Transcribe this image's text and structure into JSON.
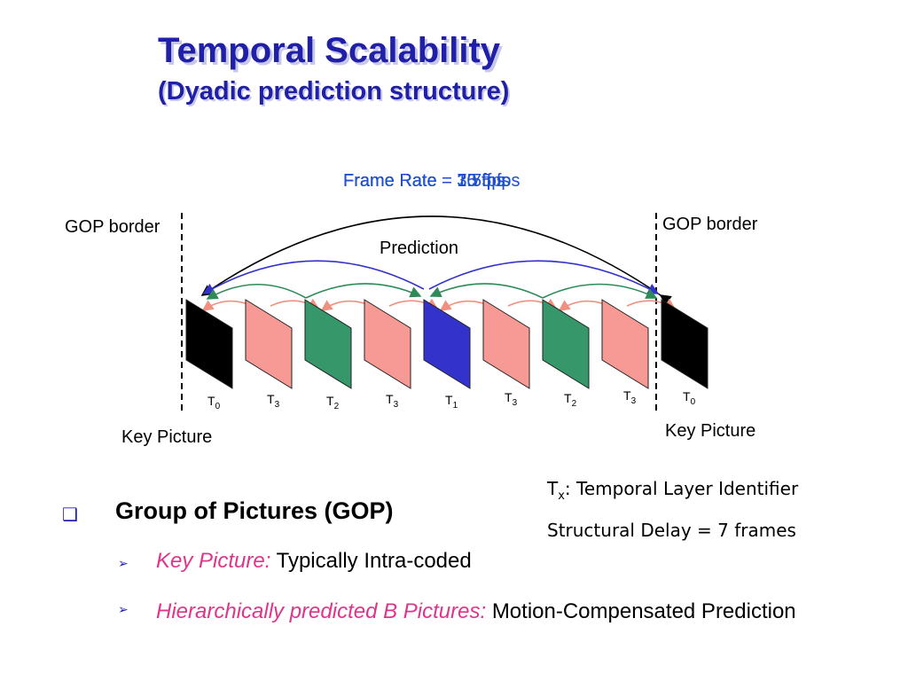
{
  "header": {
    "title": "Temporal Scalability",
    "subtitle": "(Dyadic prediction structure)"
  },
  "diagram": {
    "frame_rates": [
      "Frame Rate = 3.75 fps",
      "Frame Rate = 7.5 fps",
      "Frame Rate = 15 fps",
      "Frame Rate = 30 fps"
    ],
    "gop_border_left": "GOP border",
    "gop_border_right": "GOP border",
    "prediction": "Prediction",
    "key_picture_left": "Key Picture",
    "key_picture_right": "Key Picture",
    "frames": [
      {
        "label": "T",
        "sub": "0"
      },
      {
        "label": "T",
        "sub": "3"
      },
      {
        "label": "T",
        "sub": "2"
      },
      {
        "label": "T",
        "sub": "3"
      },
      {
        "label": "T",
        "sub": "1"
      },
      {
        "label": "T",
        "sub": "3"
      },
      {
        "label": "T",
        "sub": "2"
      },
      {
        "label": "T",
        "sub": "3"
      },
      {
        "label": "T",
        "sub": "0"
      }
    ]
  },
  "notes": {
    "identifier": {
      "label": "T",
      "sub": "x",
      "text": ": Temporal Layer Identifier"
    },
    "delay": "Structural Delay = 7 frames"
  },
  "bullets": {
    "main": "Group of Pictures (GOP)",
    "items": [
      {
        "emphasis": "Key Picture:",
        "text": "Typically Intra-coded"
      },
      {
        "emphasis": "Hierarchically predicted B Pictures:",
        "text": "Motion-Compensated Prediction"
      }
    ]
  }
}
